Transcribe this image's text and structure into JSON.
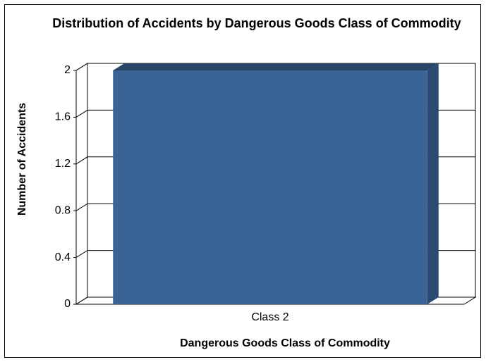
{
  "chart_data": {
    "type": "bar3d",
    "title": "Distribution of Accidents by Dangerous Goods Class of Commodity",
    "x_label": "Dangerous Goods Class of Commodity",
    "y_label": "Number of Accidents",
    "categories": [
      "Class 2"
    ],
    "values": [
      2
    ],
    "color": "#3a6496",
    "ylim": [
      0,
      2
    ],
    "yticks": [
      0,
      0.4,
      0.8,
      1.2,
      1.6,
      2
    ],
    "grid": true
  }
}
